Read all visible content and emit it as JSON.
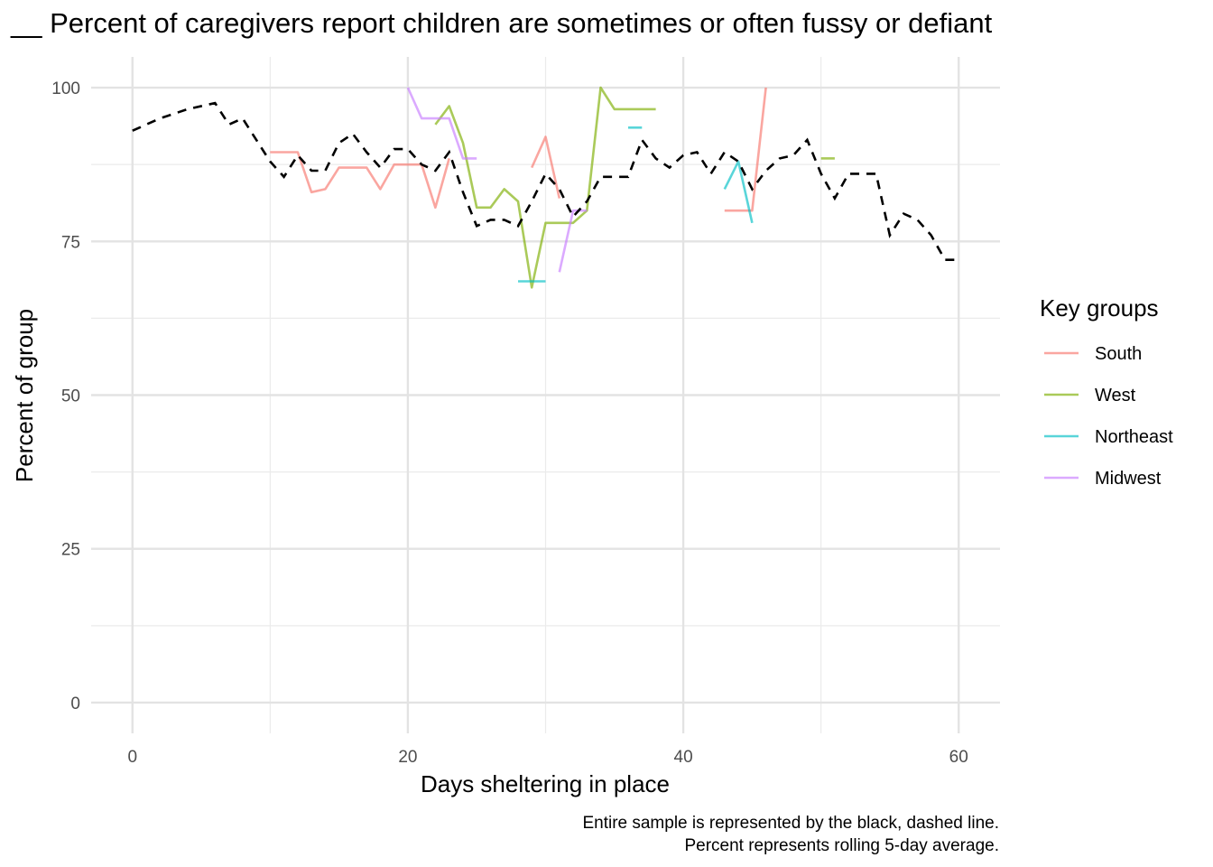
{
  "chart_data": {
    "type": "line",
    "title": "__ Percent of caregivers report children are sometimes or often fussy or defiant",
    "xlabel": "Days sheltering in place",
    "ylabel": "Percent of group",
    "xlim": [
      -3,
      63
    ],
    "ylim": [
      -5,
      105
    ],
    "x_ticks": [
      0,
      20,
      40,
      60
    ],
    "y_ticks": [
      0,
      25,
      50,
      75,
      100
    ],
    "grid": true,
    "caption": [
      "Entire sample is represented by the black, dashed line.",
      "Percent represents rolling 5-day average."
    ],
    "legend": {
      "title": "Key groups",
      "position": "right"
    },
    "overall": {
      "color": "#000000",
      "style": "dashed",
      "points": [
        [
          0,
          93
        ],
        [
          2,
          95
        ],
        [
          4,
          96.5
        ],
        [
          6,
          97.5
        ],
        [
          7,
          94
        ],
        [
          8,
          95
        ],
        [
          10,
          88
        ],
        [
          11,
          85.5
        ],
        [
          12,
          89
        ],
        [
          13,
          86.5
        ],
        [
          14,
          86.5
        ],
        [
          15,
          91
        ],
        [
          16,
          92.5
        ],
        [
          17,
          89.5
        ],
        [
          18,
          87
        ],
        [
          19,
          90
        ],
        [
          20,
          90
        ],
        [
          21,
          87.5
        ],
        [
          22,
          86.5
        ],
        [
          23,
          89.5
        ],
        [
          24,
          83
        ],
        [
          25,
          77.5
        ],
        [
          26,
          78.5
        ],
        [
          27,
          78.5
        ],
        [
          28,
          77.5
        ],
        [
          29,
          81.5
        ],
        [
          30,
          86
        ],
        [
          31,
          83.5
        ],
        [
          32,
          79
        ],
        [
          33,
          81.5
        ],
        [
          34,
          85.5
        ],
        [
          35,
          85.5
        ],
        [
          36,
          85.5
        ],
        [
          37,
          91.5
        ],
        [
          38,
          88.5
        ],
        [
          39,
          87
        ],
        [
          40,
          89
        ],
        [
          41,
          89.5
        ],
        [
          42,
          86
        ],
        [
          43,
          89.5
        ],
        [
          44,
          88
        ],
        [
          45,
          83.5
        ],
        [
          46,
          86.5
        ],
        [
          47,
          88.5
        ],
        [
          48,
          89
        ],
        [
          49,
          91.5
        ],
        [
          50,
          86
        ],
        [
          51,
          82
        ],
        [
          52,
          86
        ],
        [
          53,
          86
        ],
        [
          54,
          86
        ],
        [
          55,
          76
        ],
        [
          56,
          79.5
        ],
        [
          57,
          78.5
        ],
        [
          58,
          76
        ],
        [
          59,
          72
        ],
        [
          60,
          72
        ]
      ]
    },
    "series": [
      {
        "name": "South",
        "color": "#f8766d",
        "segments": [
          [
            [
              10,
              89.5
            ],
            [
              11,
              89.5
            ],
            [
              12,
              89.5
            ],
            [
              13,
              83
            ],
            [
              14,
              83.5
            ],
            [
              15,
              87
            ],
            [
              16,
              87
            ],
            [
              17,
              87
            ],
            [
              18,
              83.5
            ],
            [
              19,
              87.5
            ],
            [
              20,
              87.5
            ],
            [
              21,
              87.5
            ],
            [
              22,
              80.5
            ],
            [
              23,
              88.5
            ]
          ],
          [
            [
              29,
              87
            ],
            [
              30,
              92
            ],
            [
              31,
              82
            ]
          ],
          [
            [
              43,
              80
            ],
            [
              44,
              80
            ],
            [
              45,
              80
            ],
            [
              46,
              100
            ]
          ]
        ]
      },
      {
        "name": "West",
        "color": "#7cae00",
        "segments": [
          [
            [
              22,
              94
            ],
            [
              23,
              97
            ],
            [
              24,
              91
            ],
            [
              25,
              80.5
            ],
            [
              26,
              80.5
            ],
            [
              27,
              83.5
            ],
            [
              28,
              81.5
            ],
            [
              29,
              67.5
            ],
            [
              30,
              78
            ],
            [
              31,
              78
            ],
            [
              32,
              78
            ],
            [
              33,
              80
            ],
            [
              34,
              100
            ],
            [
              35,
              96.5
            ],
            [
              36,
              96.5
            ],
            [
              37,
              96.5
            ],
            [
              38,
              96.5
            ]
          ],
          [
            [
              50,
              88.5
            ],
            [
              51,
              88.5
            ]
          ]
        ]
      },
      {
        "name": "Northeast",
        "color": "#00bfc4",
        "segments": [
          [
            [
              28,
              68.5
            ],
            [
              29,
              68.5
            ],
            [
              30,
              68.5
            ]
          ],
          [
            [
              36,
              93.5
            ],
            [
              37,
              93.5
            ]
          ],
          [
            [
              43,
              83.5
            ],
            [
              44,
              88
            ],
            [
              45,
              78
            ]
          ]
        ]
      },
      {
        "name": "Midwest",
        "color": "#c77cff",
        "segments": [
          [
            [
              20,
              100
            ],
            [
              21,
              95
            ],
            [
              22,
              95
            ],
            [
              23,
              95
            ],
            [
              24,
              88.5
            ],
            [
              25,
              88.5
            ]
          ],
          [
            [
              31,
              70
            ],
            [
              32,
              80
            ],
            [
              33,
              80
            ]
          ]
        ]
      }
    ]
  }
}
